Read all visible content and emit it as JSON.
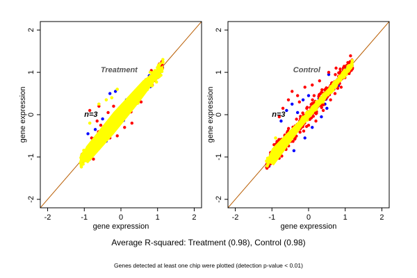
{
  "caption": "Average R-squared: Treatment (0.98), Control (0.98)",
  "subcaption": "Genes detected at least one chip were plotted (detection p-value < 0.01)",
  "colors": {
    "yellow": "#ffff00",
    "red": "#ff0000",
    "blue": "#0000ff",
    "identity_line": "#b85c00",
    "annotation": "#555555"
  },
  "chart_data": [
    {
      "type": "scatter",
      "panel": "left",
      "title": "",
      "annotation": "Treatment",
      "n_label": "n=3",
      "xlabel": "gene expression",
      "ylabel": "gene expression",
      "xlim": [
        -2.2,
        2.2
      ],
      "ylim": [
        -2.2,
        2.2
      ],
      "xticks": [
        -2,
        -1,
        0,
        1,
        2
      ],
      "yticks": [
        -2,
        -1,
        0,
        1,
        2
      ],
      "grid": false,
      "reference_line": "y = x",
      "cloud": {
        "x_range": [
          -1.1,
          1.15
        ],
        "y_range": [
          -1.15,
          1.1
        ],
        "spread": 0.12
      },
      "series": [
        {
          "color": "blue",
          "points": [
            [
              -0.9,
              -0.45
            ],
            [
              -0.5,
              -0.1
            ],
            [
              -0.3,
              0.5
            ],
            [
              -0.15,
              0.55
            ],
            [
              0.15,
              0.35
            ],
            [
              -0.85,
              -1.05
            ],
            [
              -0.7,
              -0.35
            ]
          ]
        },
        {
          "color": "red",
          "points": [
            [
              -0.85,
              0.1
            ],
            [
              -0.65,
              -0.15
            ],
            [
              -0.55,
              -0.25
            ],
            [
              -0.3,
              -0.55
            ],
            [
              -0.1,
              -0.5
            ],
            [
              0.1,
              -0.3
            ],
            [
              0.3,
              -0.2
            ],
            [
              0.55,
              0.3
            ],
            [
              -0.8,
              -0.55
            ],
            [
              -0.6,
              0.2
            ],
            [
              -0.2,
              0.2
            ],
            [
              -0.75,
              -1.05
            ],
            [
              -0.35,
              0.05
            ]
          ]
        },
        {
          "color": "yellow",
          "points": [
            [
              -0.6,
              0.25
            ],
            [
              -0.4,
              0.35
            ],
            [
              -0.25,
              0.4
            ],
            [
              -0.1,
              0.6
            ],
            [
              0.05,
              0.2
            ],
            [
              0.2,
              0.05
            ],
            [
              -0.85,
              -0.2
            ],
            [
              0.45,
              0.3
            ],
            [
              0.55,
              0.6
            ],
            [
              0.8,
              1.0
            ]
          ]
        }
      ]
    },
    {
      "type": "scatter",
      "panel": "right",
      "title": "",
      "annotation": "Control",
      "n_label": "n=3",
      "xlabel": "gene expression",
      "ylabel": "gene expression",
      "xlim": [
        -2.2,
        2.2
      ],
      "ylim": [
        -2.2,
        2.2
      ],
      "xticks": [
        -2,
        -1,
        0,
        1,
        2
      ],
      "yticks": [
        -2,
        -1,
        0,
        1,
        2
      ],
      "grid": false,
      "reference_line": "y = x",
      "cloud": {
        "x_range": [
          -1.15,
          1.2
        ],
        "y_range": [
          -1.15,
          1.2
        ],
        "spread": 0.08
      },
      "series": [
        {
          "color": "blue",
          "points": [
            [
              -0.75,
              -0.15
            ],
            [
              -0.6,
              0.1
            ],
            [
              -0.45,
              0.25
            ],
            [
              -0.3,
              0.05
            ],
            [
              -0.15,
              0.35
            ],
            [
              0.1,
              -0.3
            ],
            [
              0.35,
              -0.05
            ],
            [
              0.5,
              0.15
            ],
            [
              0.55,
              0.95
            ],
            [
              -0.1,
              -0.55
            ],
            [
              -0.4,
              -0.85
            ],
            [
              0.0,
              0.45
            ]
          ]
        },
        {
          "color": "red",
          "points": [
            [
              -0.8,
              -0.05
            ],
            [
              -0.7,
              0.15
            ],
            [
              -0.55,
              0.35
            ],
            [
              -0.45,
              0.55
            ],
            [
              -0.3,
              0.45
            ],
            [
              -0.1,
              0.65
            ],
            [
              0.1,
              0.7
            ],
            [
              0.3,
              0.8
            ],
            [
              0.55,
              1.0
            ],
            [
              0.75,
              1.1
            ],
            [
              -0.65,
              -0.5
            ],
            [
              -0.4,
              -0.35
            ],
            [
              -0.2,
              -0.3
            ],
            [
              0.0,
              -0.25
            ],
            [
              0.2,
              -0.15
            ],
            [
              0.4,
              0.1
            ],
            [
              0.6,
              0.35
            ],
            [
              -0.05,
              0.15
            ],
            [
              -0.25,
              0.3
            ],
            [
              0.15,
              0.45
            ]
          ]
        },
        {
          "color": "yellow",
          "points": [
            [
              -0.9,
              -0.55
            ],
            [
              -0.75,
              -0.75
            ]
          ]
        }
      ]
    }
  ]
}
